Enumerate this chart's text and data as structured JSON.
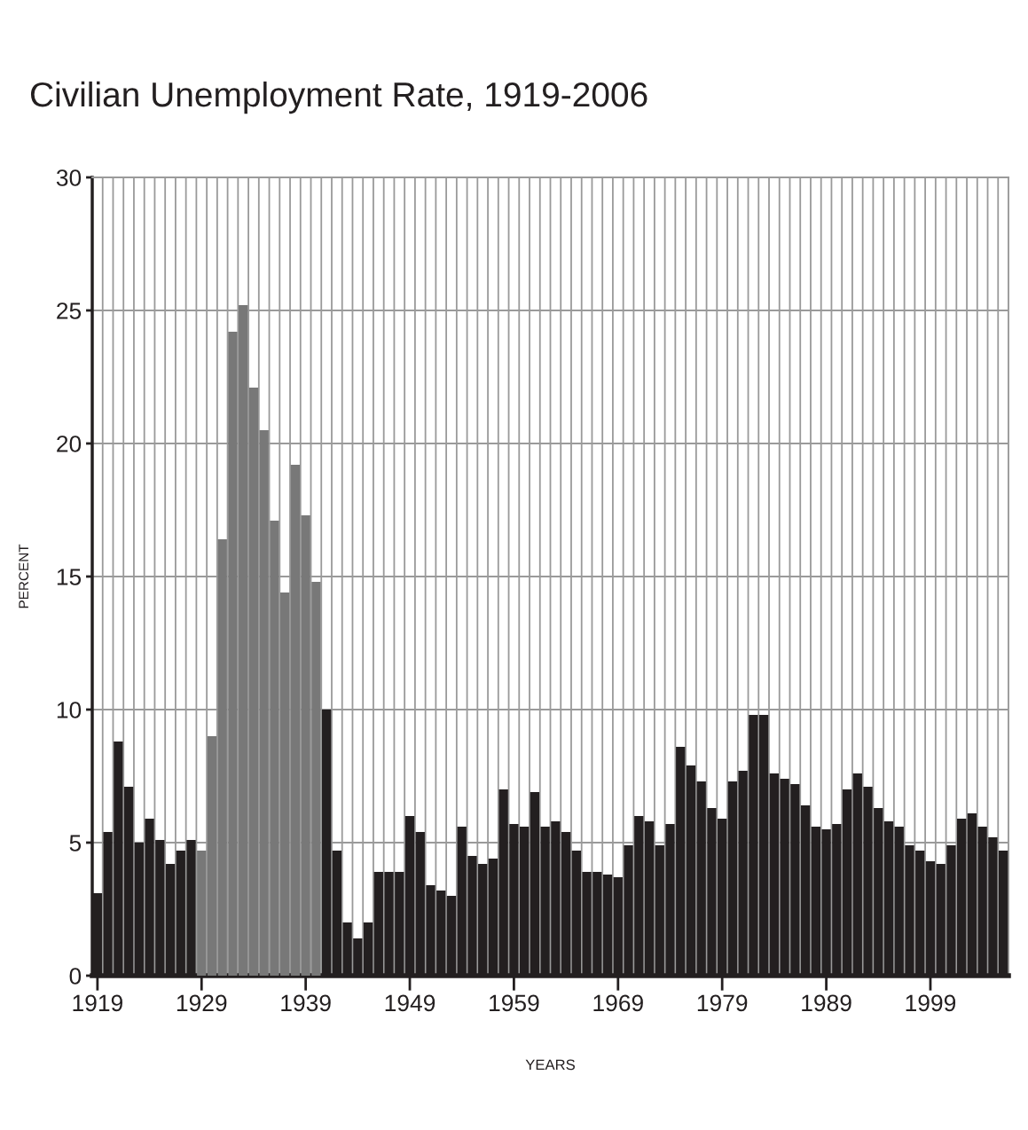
{
  "chart_data": {
    "type": "bar",
    "title": "Civilian Unemployment Rate, 1919-2006",
    "xlabel": "YEARS",
    "ylabel": "PERCENT",
    "categories": [
      "1919",
      null,
      null,
      null,
      null,
      null,
      null,
      null,
      null,
      null,
      "1929",
      null,
      null,
      null,
      null,
      null,
      null,
      null,
      null,
      null,
      "1939",
      null,
      null,
      null,
      null,
      null,
      null,
      null,
      null,
      null,
      "1949",
      null,
      null,
      null,
      null,
      null,
      null,
      null,
      null,
      null,
      "1959",
      null,
      null,
      null,
      null,
      null,
      null,
      null,
      null,
      null,
      "1969",
      null,
      null,
      null,
      null,
      null,
      null,
      null,
      null,
      null,
      "1979",
      null,
      null,
      null,
      null,
      null,
      null,
      null,
      null,
      null,
      "1989",
      null,
      null,
      null,
      null,
      null,
      null,
      null,
      null,
      null,
      "1999",
      null,
      null,
      null,
      null,
      null,
      null,
      null
    ],
    "values": [
      3.1,
      5.4,
      8.8,
      7.1,
      5.0,
      5.9,
      5.1,
      4.2,
      4.7,
      5.1,
      4.7,
      9.0,
      16.4,
      24.2,
      25.2,
      22.1,
      20.5,
      17.1,
      14.4,
      19.2,
      17.3,
      14.8,
      10.0,
      4.7,
      2.0,
      1.4,
      2.0,
      3.9,
      3.9,
      3.9,
      6.0,
      5.4,
      3.4,
      3.2,
      3.0,
      5.6,
      4.5,
      4.2,
      4.4,
      7.0,
      5.7,
      5.6,
      6.9,
      5.6,
      5.8,
      5.4,
      4.7,
      3.9,
      3.9,
      3.8,
      3.7,
      4.9,
      6.0,
      5.8,
      4.9,
      5.7,
      8.6,
      7.9,
      7.3,
      6.3,
      5.9,
      7.3,
      7.7,
      9.8,
      9.8,
      7.6,
      7.4,
      7.2,
      6.4,
      5.6,
      5.5,
      5.7,
      7.0,
      7.6,
      7.1,
      6.3,
      5.8,
      5.6,
      4.9,
      4.7,
      4.3,
      4.2,
      4.9,
      5.9,
      6.1,
      5.6,
      5.2,
      4.7
    ],
    "colors": [
      "#231f20",
      "#231f20",
      "#231f20",
      "#231f20",
      "#231f20",
      "#231f20",
      "#231f20",
      "#231f20",
      "#231f20",
      "#231f20",
      "#787878",
      "#787878",
      "#787878",
      "#787878",
      "#787878",
      "#787878",
      "#787878",
      "#787878",
      "#787878",
      "#787878",
      "#787878",
      "#787878",
      "#231f20",
      "#231f20",
      "#231f20",
      "#231f20",
      "#231f20",
      "#231f20",
      "#231f20",
      "#231f20",
      "#231f20",
      "#231f20",
      "#231f20",
      "#231f20",
      "#231f20",
      "#231f20",
      "#231f20",
      "#231f20",
      "#231f20",
      "#231f20",
      "#231f20",
      "#231f20",
      "#231f20",
      "#231f20",
      "#231f20",
      "#231f20",
      "#231f20",
      "#231f20",
      "#231f20",
      "#231f20",
      "#231f20",
      "#231f20",
      "#231f20",
      "#231f20",
      "#231f20",
      "#231f20",
      "#231f20",
      "#231f20",
      "#231f20",
      "#231f20",
      "#231f20",
      "#231f20",
      "#231f20",
      "#231f20",
      "#231f20",
      "#231f20",
      "#231f20",
      "#231f20",
      "#231f20",
      "#231f20",
      "#231f20",
      "#231f20",
      "#231f20",
      "#231f20",
      "#231f20",
      "#231f20",
      "#231f20",
      "#231f20",
      "#231f20",
      "#231f20",
      "#231f20",
      "#231f20",
      "#231f20",
      "#231f20",
      "#231f20",
      "#231f20",
      "#231f20",
      "#231f20"
    ],
    "ylim": [
      0,
      30
    ],
    "yticks": [
      0,
      5,
      10,
      15,
      20,
      25,
      30
    ],
    "grid": true
  }
}
